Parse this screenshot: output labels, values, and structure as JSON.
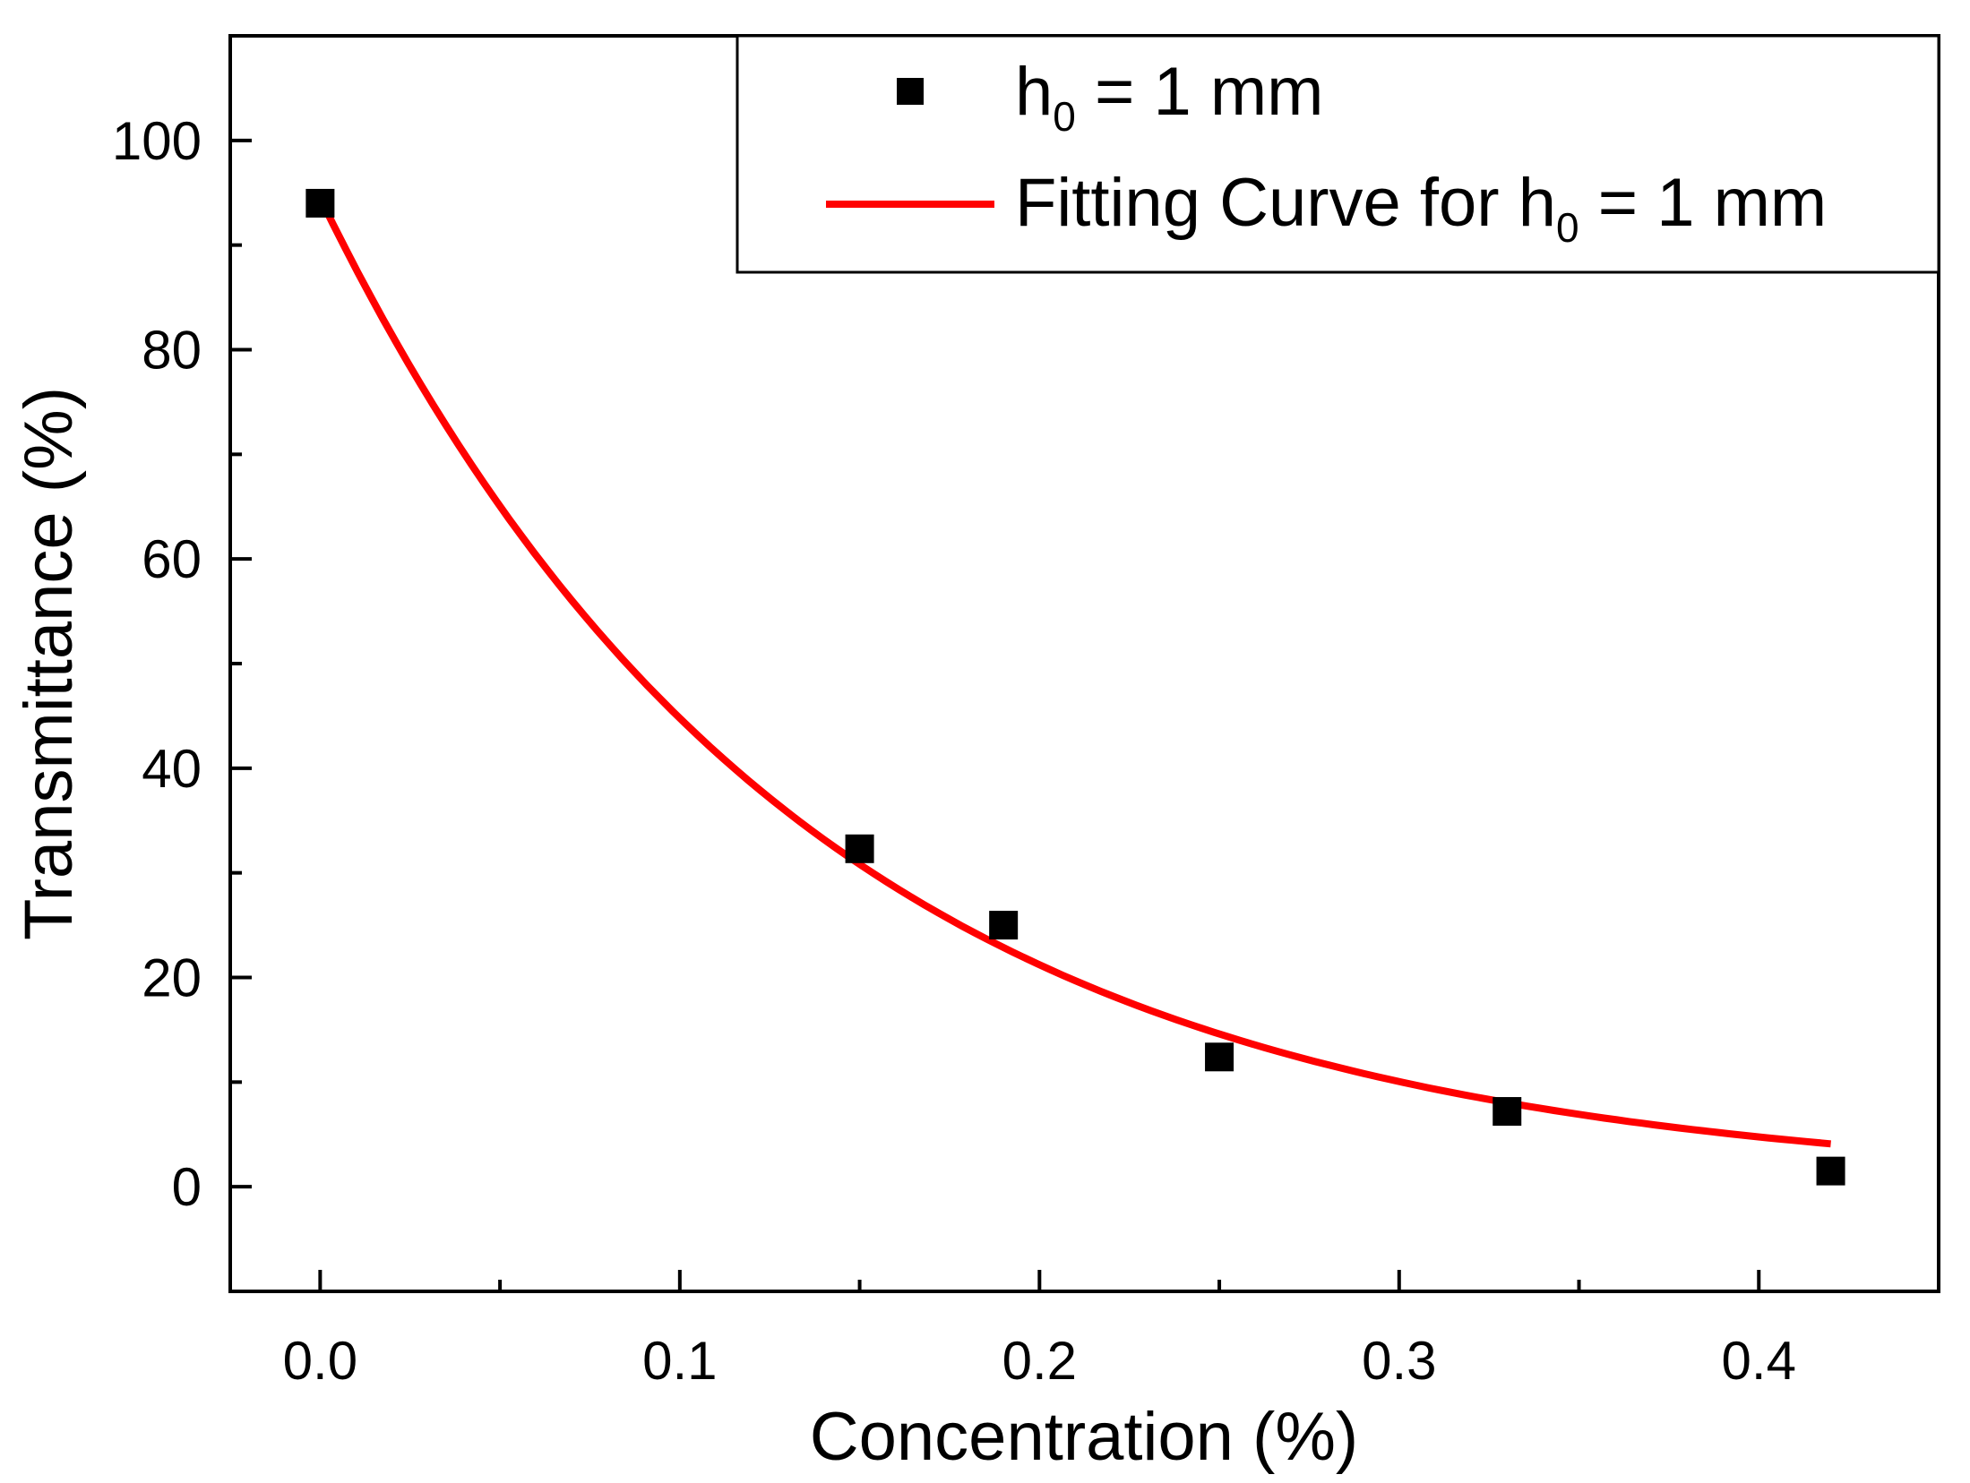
{
  "chart_data": {
    "type": "scatter",
    "title": "",
    "xlabel": "Concentration (%)",
    "ylabel": "Transmittance (%)",
    "xlim": [
      -0.025,
      0.45
    ],
    "ylim": [
      -10,
      110
    ],
    "x_ticks": [
      {
        "value": 0.0,
        "label": "0.0"
      },
      {
        "value": 0.1,
        "label": "0.1"
      },
      {
        "value": 0.2,
        "label": "0.2"
      },
      {
        "value": 0.3,
        "label": "0.3"
      },
      {
        "value": 0.4,
        "label": "0.4"
      }
    ],
    "x_minor_ticks": [
      0.05,
      0.15,
      0.25,
      0.35
    ],
    "y_ticks": [
      {
        "value": 0,
        "label": "0"
      },
      {
        "value": 20,
        "label": "20"
      },
      {
        "value": 40,
        "label": "40"
      },
      {
        "value": 60,
        "label": "60"
      },
      {
        "value": 80,
        "label": "80"
      },
      {
        "value": 100,
        "label": "100"
      }
    ],
    "y_minor_ticks": [
      10,
      30,
      50,
      70,
      90
    ],
    "grid": false,
    "legend_position": "top-right",
    "series": [
      {
        "name": "h0 = 1 mm",
        "kind": "scatter",
        "marker": "square",
        "color": "#000000",
        "x": [
          0.0,
          0.15,
          0.19,
          0.25,
          0.33,
          0.42
        ],
        "y": [
          94,
          32.3,
          25,
          12.4,
          7.2,
          1.5
        ]
      },
      {
        "name": "Fitting Curve for h0 = 1 mm",
        "kind": "line",
        "color": "#ff0000",
        "fit": {
          "form": "y = a*exp(-b*x)",
          "a": 94.5,
          "b": 7.47
        },
        "x_range": [
          0.0,
          0.42
        ]
      }
    ]
  },
  "legend": {
    "entries": [
      {
        "text": "h",
        "sub": "0",
        "rest": " = 1 mm"
      },
      {
        "text": "Fitting Curve for h",
        "sub": "0",
        "rest": " = 1 mm"
      }
    ]
  }
}
